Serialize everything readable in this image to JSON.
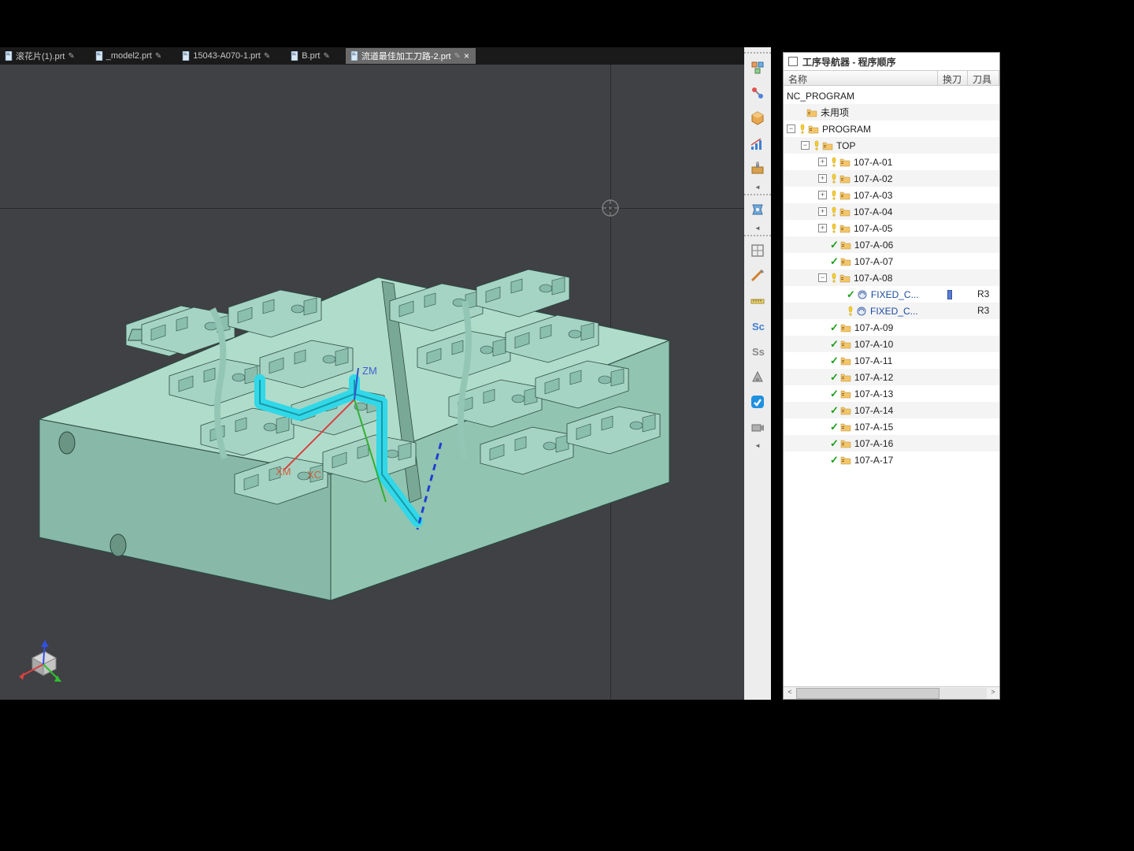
{
  "tabs": [
    {
      "label": "滚花片(1).prt",
      "modified": true,
      "active": false
    },
    {
      "label": "_model2.prt",
      "modified": true,
      "active": false
    },
    {
      "label": "15043-A070-1.prt",
      "modified": true,
      "active": false
    },
    {
      "label": "B.prt",
      "modified": true,
      "active": false
    },
    {
      "label": "流道最佳加工刀路-2.prt",
      "modified": true,
      "active": true
    }
  ],
  "viewport": {
    "background": "#404144",
    "model_body_color": "#a8d8c8",
    "model_shadow_color": "#6fa895",
    "model_edge_color": "#2a4a40",
    "highlight_path_color": "#30d8e8",
    "path_stroke_color": "#2040d0",
    "axis_labels": {
      "x": "XC",
      "x2": "XM",
      "z": "ZM"
    },
    "axis_x_color": "#d84040",
    "axis_y_color": "#30b030",
    "axis_z_color": "#3050d0",
    "axis_label_color_x": "#d06040",
    "axis_label_color_z": "#4060d0",
    "crosshair_color": "#2a2a2a",
    "crosshair_center_color": "#888888"
  },
  "triad": {
    "cube_color": "#b8b8b8",
    "x_color": "#e04040",
    "y_color": "#30c030",
    "z_color": "#3050e8"
  },
  "nav": {
    "title": "工序导航器 - 程序顺序",
    "columns": {
      "c1": "名称",
      "c2": "换刀",
      "c3": "刀具"
    },
    "root": "NC_PROGRAM",
    "unused": "未用项",
    "program": "PROGRAM",
    "top": "TOP",
    "items": [
      {
        "name": "107-A-01",
        "status": "warn",
        "expand": "plus"
      },
      {
        "name": "107-A-02",
        "status": "warn",
        "expand": "plus"
      },
      {
        "name": "107-A-03",
        "status": "warn",
        "expand": "plus"
      },
      {
        "name": "107-A-04",
        "status": "warn",
        "expand": "plus"
      },
      {
        "name": "107-A-05",
        "status": "warn",
        "expand": "plus"
      },
      {
        "name": "107-A-06",
        "status": "check",
        "expand": "none"
      },
      {
        "name": "107-A-07",
        "status": "check",
        "expand": "none"
      },
      {
        "name": "107-A-08",
        "status": "warn",
        "expand": "minus",
        "children": [
          {
            "name": "FIXED_C...",
            "status": "check",
            "tool": "R3",
            "tc": true
          },
          {
            "name": "FIXED_C...",
            "status": "warn",
            "tool": "R3",
            "tc": false
          }
        ]
      },
      {
        "name": "107-A-09",
        "status": "check",
        "expand": "none"
      },
      {
        "name": "107-A-10",
        "status": "check",
        "expand": "none"
      },
      {
        "name": "107-A-11",
        "status": "check",
        "expand": "none"
      },
      {
        "name": "107-A-12",
        "status": "check",
        "expand": "none"
      },
      {
        "name": "107-A-13",
        "status": "check",
        "expand": "none"
      },
      {
        "name": "107-A-14",
        "status": "check",
        "expand": "none"
      },
      {
        "name": "107-A-15",
        "status": "check",
        "expand": "none"
      },
      {
        "name": "107-A-16",
        "status": "check",
        "expand": "none"
      },
      {
        "name": "107-A-17",
        "status": "check",
        "expand": "none"
      }
    ]
  },
  "side_tools": [
    "assembly",
    "constraints",
    "part",
    "analysis",
    "manufacturing",
    "sep",
    "machining",
    "sep",
    "feature",
    "sketch",
    "measure",
    "simulate",
    "verify",
    "additive",
    "view",
    "camera"
  ],
  "colors": {
    "toolbar_bg": "#ededed",
    "panel_bg": "#ffffff",
    "active_tab_bg": "#6a6a6a",
    "check_green": "#1a9e1a",
    "warn_yellow": "#f0c000",
    "folder_fill": "#f4c569",
    "op_icon_color": "#4a6aaa"
  }
}
